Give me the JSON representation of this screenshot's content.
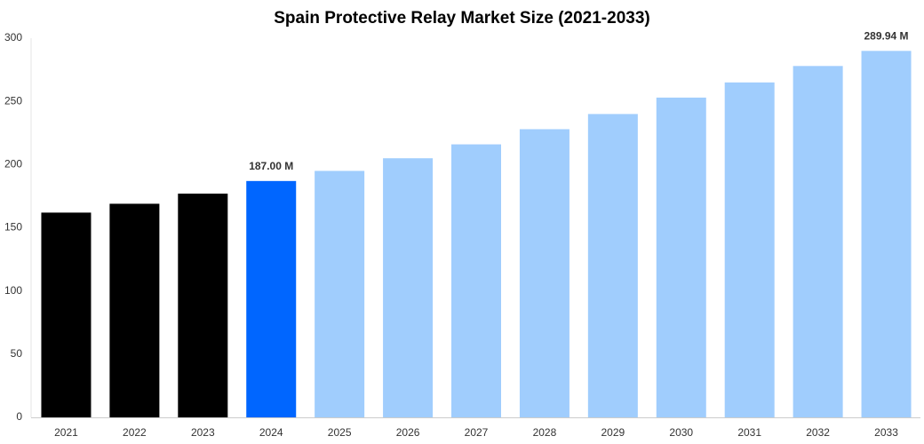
{
  "chart_data": {
    "type": "bar",
    "title": "Spain Protective Relay Market Size (2021-2033)",
    "categories": [
      "2021",
      "2022",
      "2023",
      "2024",
      "2025",
      "2026",
      "2027",
      "2028",
      "2029",
      "2030",
      "2031",
      "2032",
      "2033"
    ],
    "values": [
      162,
      169,
      177,
      187,
      195,
      205,
      216,
      228,
      240,
      253,
      265,
      278,
      289.94
    ],
    "value_labels": [
      null,
      null,
      null,
      "187.00 M",
      null,
      null,
      null,
      null,
      null,
      null,
      null,
      null,
      "289.94 M"
    ],
    "colors": [
      "#000000",
      "#000000",
      "#000000",
      "#0066ff",
      "#a0cdfd",
      "#a0cdfd",
      "#a0cdfd",
      "#a0cdfd",
      "#a0cdfd",
      "#a0cdfd",
      "#a0cdfd",
      "#a0cdfd",
      "#a0cdfd"
    ],
    "ylim": [
      0,
      300
    ],
    "yticks": [
      0,
      50,
      100,
      150,
      200,
      250,
      300
    ],
    "grid": false
  }
}
